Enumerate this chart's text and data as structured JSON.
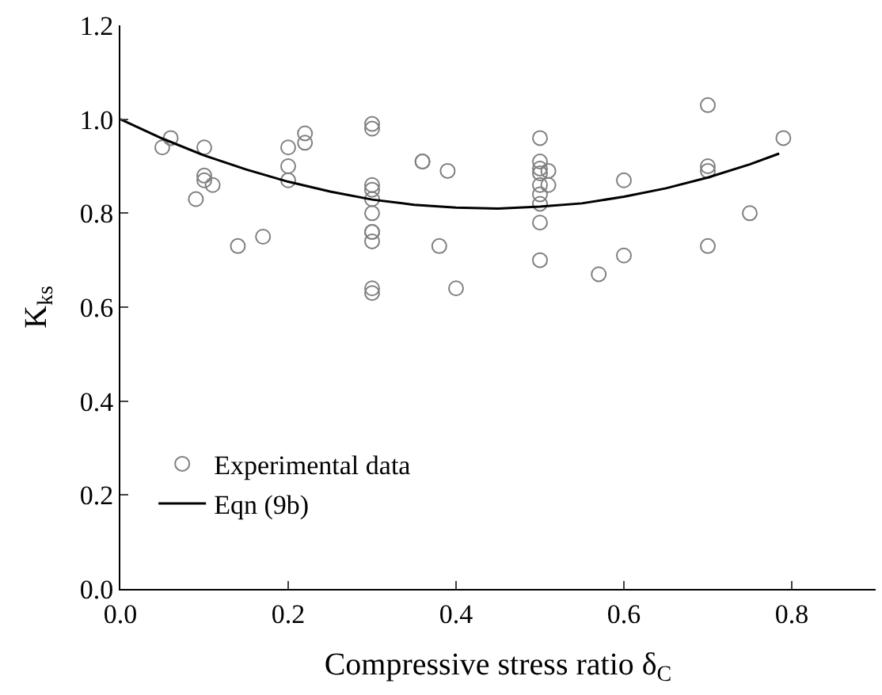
{
  "chart_data": {
    "type": "scatter",
    "xlabel": "Compressive stress ratio δ$_{C}$",
    "ylabel": "K$_{ks}$",
    "xlim": [
      0,
      0.9
    ],
    "ylim": [
      0,
      1.2
    ],
    "xticks": [
      {
        "value": 0,
        "label": "0.0"
      },
      0.2,
      0.4,
      0.6,
      0.8
    ],
    "yticks": [
      {
        "value": 0,
        "label": "0.0"
      },
      0.2,
      0.4,
      0.6,
      0.8,
      {
        "value": 1,
        "label": "1.0"
      },
      1.2
    ],
    "legend": "bottom left",
    "series": [
      {
        "name": "Experimental data",
        "marker": "circle",
        "color": "#808080",
        "x": [
          0.05,
          0.06,
          0.1,
          0.1,
          0.1,
          0.11,
          0.09,
          0.14,
          0.17,
          0.2,
          0.2,
          0.2,
          0.22,
          0.22,
          0.3,
          0.3,
          0.3,
          0.3,
          0.3,
          0.3,
          0.3,
          0.3,
          0.3,
          0.3,
          0.3,
          0.36,
          0.36,
          0.39,
          0.38,
          0.4,
          0.5,
          0.5,
          0.5,
          0.5,
          0.5,
          0.5,
          0.5,
          0.5,
          0.5,
          0.51,
          0.51,
          0.6,
          0.6,
          0.57,
          0.7,
          0.7,
          0.7,
          0.7,
          0.75,
          0.79
        ],
        "values": [
          0.94,
          0.96,
          0.94,
          0.88,
          0.87,
          0.86,
          0.83,
          0.73,
          0.75,
          0.94,
          0.9,
          0.87,
          0.97,
          0.95,
          0.99,
          0.98,
          0.86,
          0.85,
          0.83,
          0.8,
          0.76,
          0.76,
          0.74,
          0.64,
          0.63,
          0.91,
          0.91,
          0.89,
          0.73,
          0.64,
          0.96,
          0.91,
          0.895,
          0.885,
          0.86,
          0.84,
          0.82,
          0.78,
          0.7,
          0.89,
          0.86,
          0.87,
          0.71,
          0.67,
          1.03,
          0.9,
          0.89,
          0.73,
          0.8,
          0.96
        ]
      },
      {
        "name": "Eqn (9b)",
        "type": "line",
        "marker": "none",
        "line_style": "solid",
        "color": "#000000",
        "x": [
          0,
          0.05,
          0.1,
          0.15,
          0.2,
          0.25,
          0.3,
          0.35,
          0.4,
          0.45,
          0.5,
          0.55,
          0.6,
          0.65,
          0.7,
          0.75,
          0.785
        ],
        "values": [
          1.0,
          0.959,
          0.923,
          0.893,
          0.867,
          0.846,
          0.829,
          0.818,
          0.812,
          0.81,
          0.814,
          0.821,
          0.835,
          0.853,
          0.876,
          0.904,
          0.927
        ]
      }
    ]
  }
}
